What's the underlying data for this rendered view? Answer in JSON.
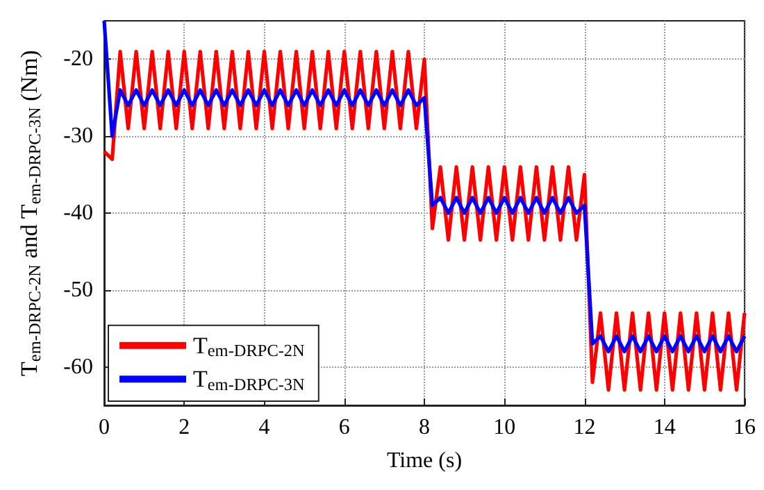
{
  "chart_data": {
    "type": "line",
    "xlabel": "Time (s)",
    "ylabel": "T$_{em-DRPC-2N}$ and T$_{em-DRPC-3N}$ (Nm)",
    "x": [
      0,
      0.2,
      0.4,
      0.6,
      0.8,
      1,
      1.2,
      1.4,
      1.6,
      1.8,
      2,
      2.2,
      2.4,
      2.6,
      2.8,
      3,
      3.2,
      3.4,
      3.6,
      3.8,
      4,
      4.2,
      4.4,
      4.6,
      4.8,
      5,
      5.2,
      5.4,
      5.6,
      5.8,
      6,
      6.2,
      6.4,
      6.6,
      6.8,
      7,
      7.2,
      7.4,
      7.6,
      7.8,
      8,
      8.2,
      8.4,
      8.6,
      8.8,
      9,
      9.2,
      9.4,
      9.6,
      9.8,
      10,
      10.2,
      10.4,
      10.6,
      10.8,
      11,
      11.2,
      11.4,
      11.6,
      11.8,
      12,
      12.2,
      12.4,
      12.6,
      12.8,
      13,
      13.2,
      13.4,
      13.6,
      13.8,
      14,
      14.2,
      14.4,
      14.6,
      14.8,
      15,
      15.2,
      15.4,
      15.6,
      15.8,
      16
    ],
    "series": [
      {
        "name": "T$_{em-DRPC-2N}$",
        "color": "#ff0000",
        "values": [
          -32,
          -33,
          -19,
          -29,
          -19,
          -29,
          -19,
          -29,
          -19,
          -29,
          -19,
          -29,
          -19,
          -29,
          -19,
          -29,
          -19,
          -29,
          -19,
          -29,
          -19,
          -29,
          -19,
          -29,
          -19,
          -29,
          -19,
          -29,
          -19,
          -29,
          -19,
          -29,
          -19,
          -29,
          -19,
          -29,
          -19,
          -29,
          -19,
          -29,
          -20,
          -42,
          -34,
          -43.5,
          -34,
          -43.5,
          -34,
          -43.5,
          -34,
          -43.5,
          -34,
          -43.5,
          -34,
          -43.5,
          -34,
          -43.5,
          -34,
          -43.5,
          -34,
          -43.5,
          -35,
          -62,
          -53,
          -63,
          -53,
          -63,
          -53,
          -63,
          -53,
          -63,
          -53,
          -63,
          -53,
          -63,
          -53,
          -63,
          -53,
          -63,
          -53,
          -63,
          -53
        ]
      },
      {
        "name": "T$_{em-DRPC-3N}$",
        "color": "#0000ff",
        "values": [
          -15,
          -30,
          -24,
          -26,
          -24,
          -26,
          -24,
          -26,
          -24,
          -26,
          -24,
          -26,
          -24,
          -26,
          -24,
          -26,
          -24,
          -26,
          -24,
          -26,
          -24,
          -26,
          -24,
          -26,
          -24,
          -26,
          -24,
          -26,
          -24,
          -26,
          -24,
          -26,
          -24,
          -26,
          -24,
          -26,
          -24,
          -26,
          -24,
          -26,
          -25,
          -39,
          -38,
          -40,
          -38,
          -40,
          -38,
          -40,
          -38,
          -40,
          -38,
          -40,
          -38,
          -40,
          -38,
          -40,
          -38,
          -40,
          -38,
          -40,
          -39,
          -57,
          -56,
          -58,
          -56,
          -58,
          -56,
          -58,
          -56,
          -58,
          -56,
          -58,
          -56,
          -58,
          -56,
          -58,
          -56,
          -58,
          -56,
          -58,
          -56
        ]
      }
    ],
    "xlim": [
      0,
      16
    ],
    "xticks": [
      0,
      2,
      4,
      6,
      8,
      10,
      12,
      14,
      16
    ],
    "ylim": [
      -65,
      -15
    ],
    "yticks": [
      -60,
      -50,
      -40,
      -30,
      -20
    ],
    "grid": true,
    "legend": "bottom left",
    "marker": "none",
    "line_style": "solid"
  }
}
